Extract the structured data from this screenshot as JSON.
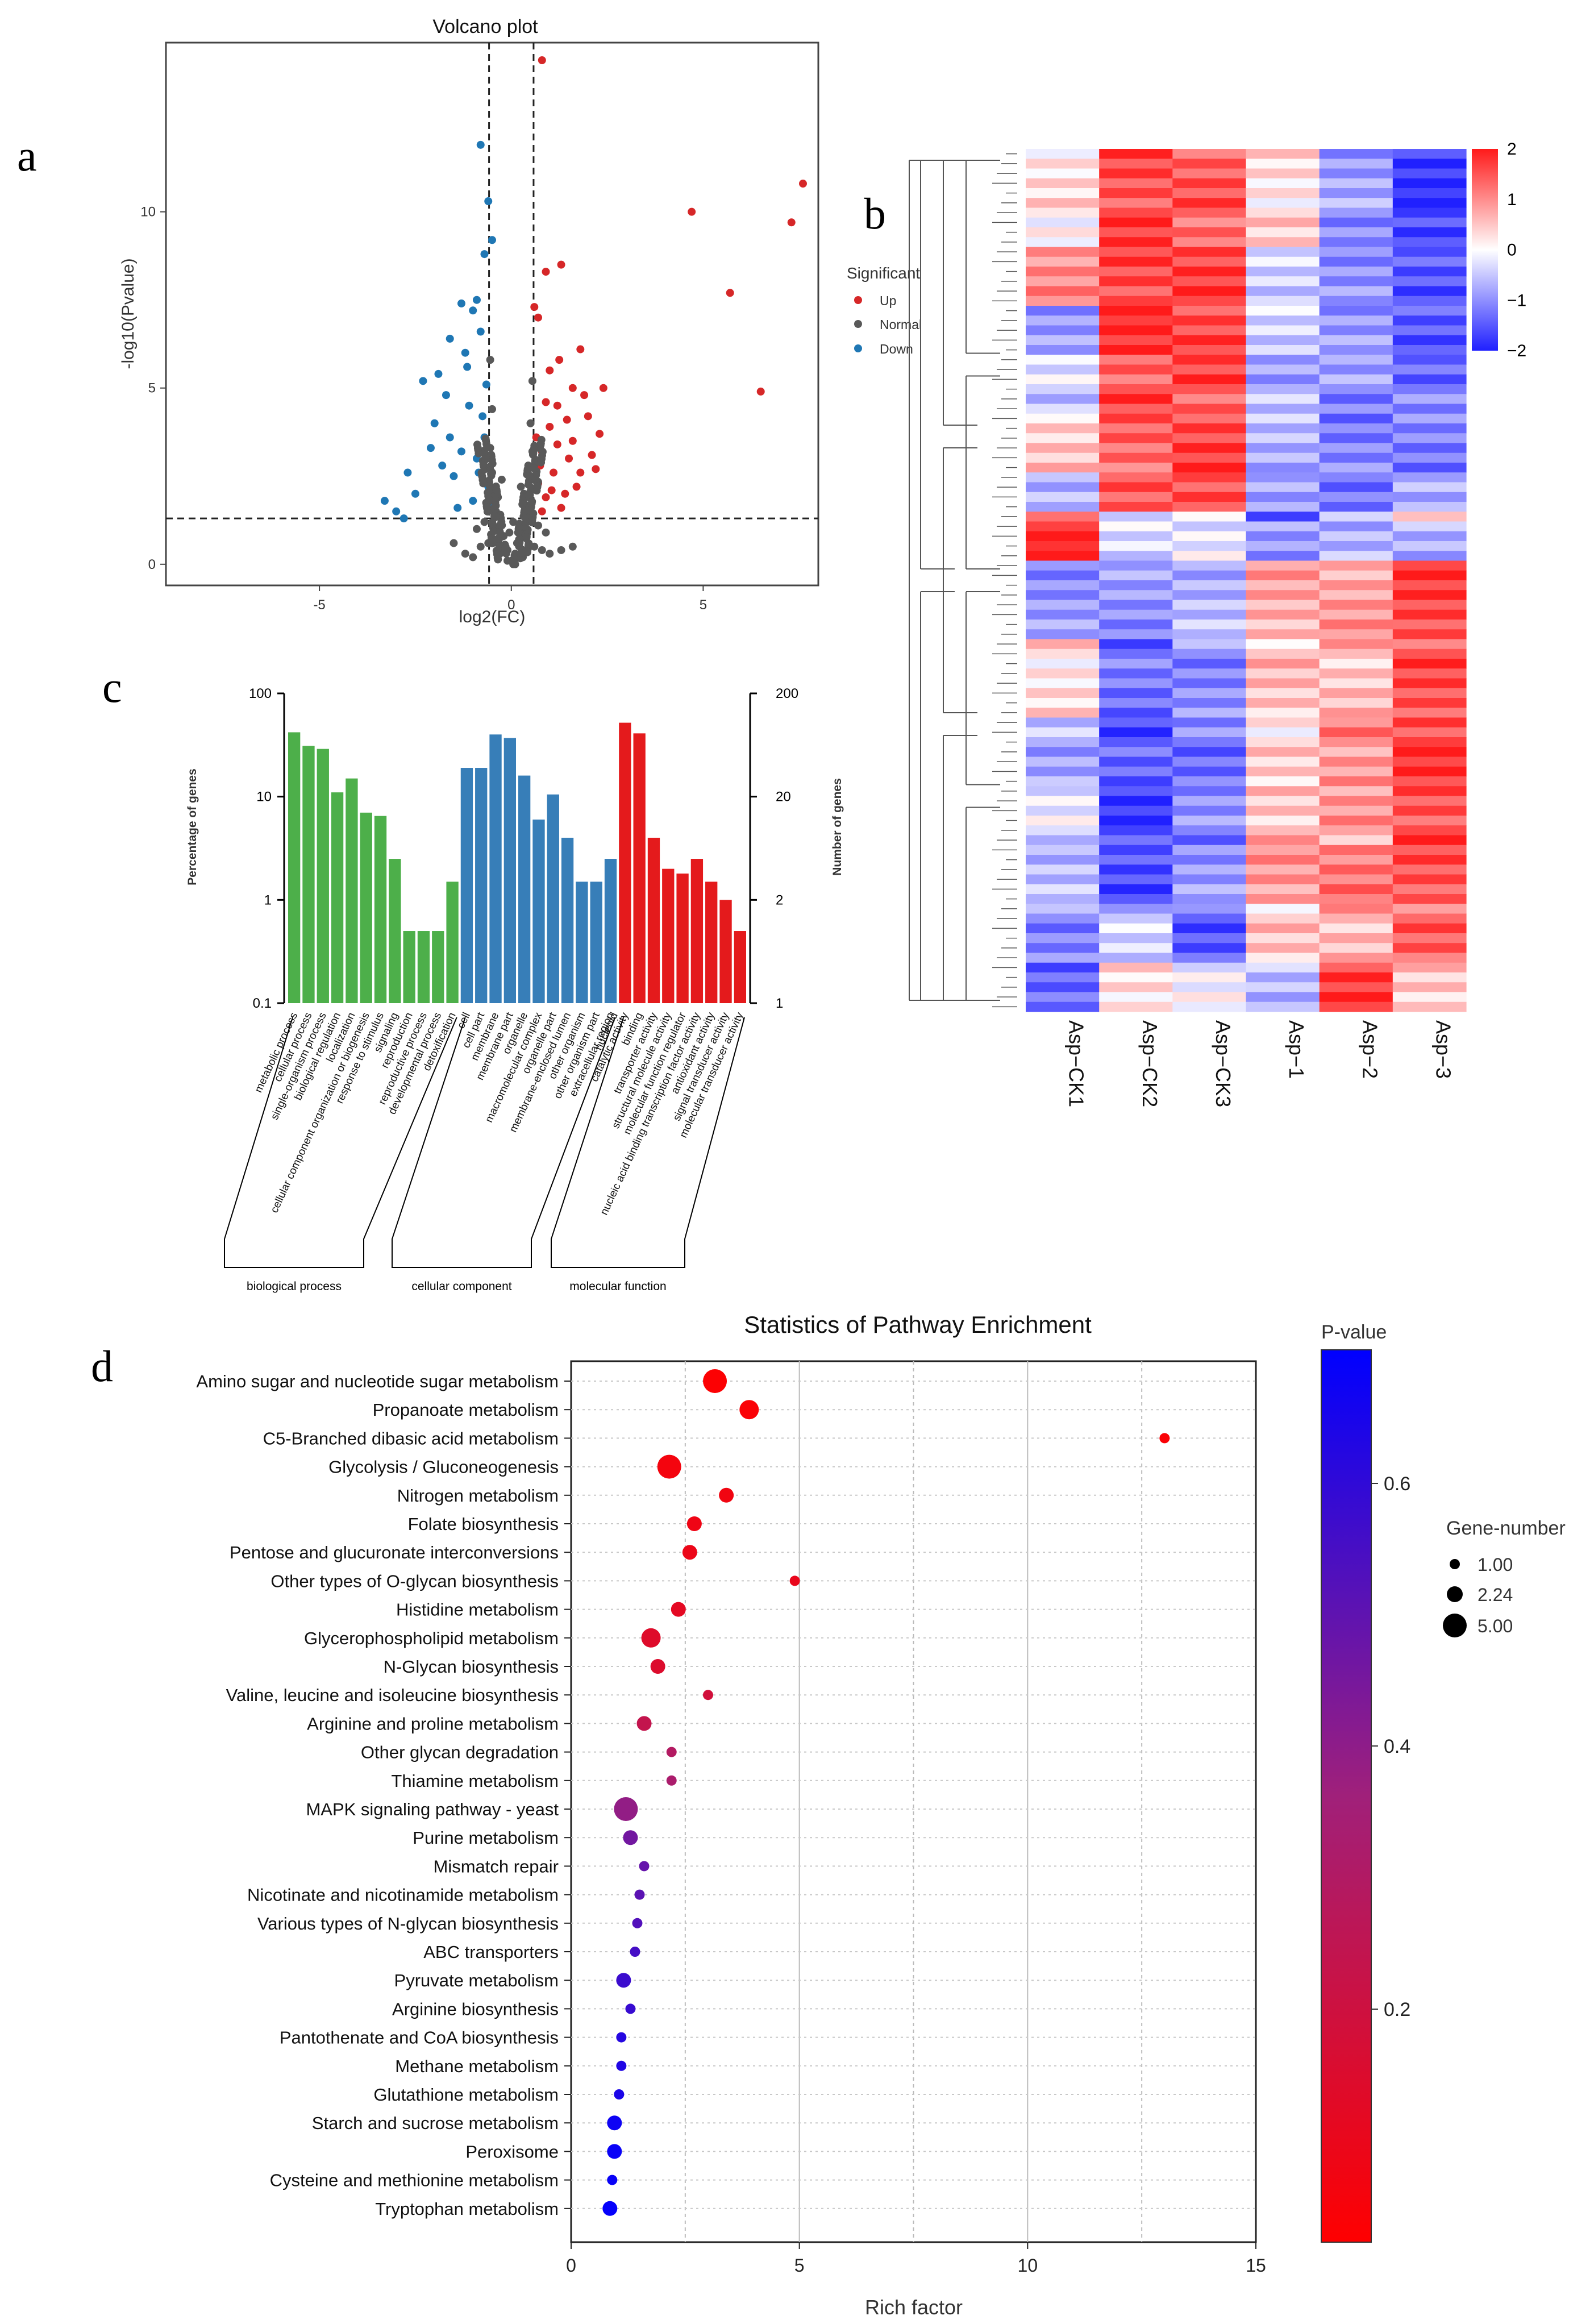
{
  "panel_labels": {
    "a": "a",
    "b": "b",
    "c": "c",
    "d": "d"
  },
  "colors": {
    "up": "#d62728",
    "normal": "#595959",
    "down": "#1f77b4",
    "bp": "#4daf4a",
    "cc": "#377eb8",
    "mf": "#e41a1c",
    "heat_low": "#2020ff",
    "heat_mid": "#ffffff",
    "heat_high": "#ff1a1a",
    "p_low": "#ff0000",
    "p_high": "#0000ff"
  },
  "chart_data": [
    {
      "id": "volcano",
      "type": "scatter",
      "title": "Volcano plot",
      "xlabel": "log2(FC)",
      "ylabel": "-log10(Pvalue)",
      "xlim": [
        -9,
        8
      ],
      "ylim": [
        -0.6,
        14.8
      ],
      "xticks": [
        -5,
        0,
        5
      ],
      "yticks": [
        0,
        5,
        10
      ],
      "thresholds": {
        "log2fc": [
          -0.58,
          0.58
        ],
        "neglog10p": 1.3
      },
      "legend_title": "Significant",
      "legend": [
        "Up",
        "Normal",
        "Down"
      ],
      "series": [
        {
          "name": "Up",
          "points": [
            [
              0.8,
              14.3
            ],
            [
              7.6,
              10.8
            ],
            [
              4.7,
              10.0
            ],
            [
              7.3,
              9.7
            ],
            [
              5.7,
              7.7
            ],
            [
              6.5,
              4.9
            ],
            [
              1.3,
              8.5
            ],
            [
              0.9,
              8.3
            ],
            [
              0.6,
              7.3
            ],
            [
              0.7,
              7.0
            ],
            [
              1.8,
              6.1
            ],
            [
              2.4,
              5.0
            ],
            [
              1.6,
              5.0
            ],
            [
              1.9,
              4.8
            ],
            [
              2.0,
              4.2
            ],
            [
              2.3,
              3.7
            ],
            [
              1.2,
              4.5
            ],
            [
              1.0,
              3.9
            ],
            [
              0.8,
              3.2
            ],
            [
              1.5,
              3.0
            ],
            [
              1.1,
              2.6
            ],
            [
              1.7,
              2.2
            ],
            [
              0.9,
              1.9
            ],
            [
              1.3,
              1.6
            ],
            [
              0.7,
              2.3
            ],
            [
              2.1,
              3.1
            ],
            [
              1.4,
              2.0
            ],
            [
              0.8,
              1.5
            ],
            [
              1.0,
              5.5
            ],
            [
              1.2,
              3.4
            ],
            [
              1.6,
              3.5
            ],
            [
              0.9,
              4.6
            ],
            [
              1.8,
              2.6
            ],
            [
              2.2,
              2.7
            ],
            [
              0.75,
              2.8
            ],
            [
              1.05,
              2.1
            ],
            [
              1.45,
              4.1
            ],
            [
              0.65,
              3.6
            ],
            [
              1.25,
              5.8
            ]
          ]
        },
        {
          "name": "Down",
          "points": [
            [
              -0.8,
              11.9
            ],
            [
              -0.6,
              10.3
            ],
            [
              -0.5,
              9.2
            ],
            [
              -0.7,
              8.8
            ],
            [
              -0.9,
              7.5
            ],
            [
              -1.0,
              7.2
            ],
            [
              -1.3,
              7.4
            ],
            [
              -0.8,
              6.6
            ],
            [
              -1.6,
              6.4
            ],
            [
              -1.2,
              6.0
            ],
            [
              -1.9,
              5.4
            ],
            [
              -2.3,
              5.2
            ],
            [
              -1.7,
              4.8
            ],
            [
              -1.1,
              4.5
            ],
            [
              -2.0,
              4.0
            ],
            [
              -2.7,
              2.6
            ],
            [
              -2.5,
              2.0
            ],
            [
              -3.3,
              1.8
            ],
            [
              -3.0,
              1.5
            ],
            [
              -2.8,
              1.3
            ],
            [
              -1.5,
              2.5
            ],
            [
              -0.9,
              3.0
            ],
            [
              -0.7,
              3.6
            ],
            [
              -1.3,
              3.2
            ],
            [
              -0.6,
              2.2
            ],
            [
              -1.0,
              1.8
            ],
            [
              -1.8,
              2.8
            ],
            [
              -0.75,
              4.2
            ],
            [
              -1.15,
              5.6
            ],
            [
              -0.65,
              5.1
            ],
            [
              -1.4,
              1.6
            ],
            [
              -0.85,
              2.6
            ],
            [
              -2.1,
              3.3
            ],
            [
              -1.6,
              3.6
            ],
            [
              -0.55,
              1.7
            ]
          ]
        },
        {
          "name": "Normal",
          "points": [
            [
              0.0,
              0.1
            ],
            [
              0.1,
              0.3
            ],
            [
              -0.1,
              0.4
            ],
            [
              0.2,
              0.7
            ],
            [
              -0.2,
              0.8
            ],
            [
              0.3,
              1.0
            ],
            [
              -0.3,
              1.1
            ],
            [
              0.4,
              1.4
            ],
            [
              -0.4,
              1.5
            ],
            [
              0.45,
              1.9
            ],
            [
              -0.45,
              2.0
            ],
            [
              0.5,
              2.5
            ],
            [
              -0.5,
              2.6
            ],
            [
              0.55,
              3.2
            ],
            [
              -0.55,
              3.3
            ],
            [
              0.3,
              0.2
            ],
            [
              -0.3,
              0.3
            ],
            [
              0.6,
              0.5
            ],
            [
              -0.6,
              0.6
            ],
            [
              0.8,
              0.4
            ],
            [
              -0.8,
              0.5
            ],
            [
              1.0,
              0.3
            ],
            [
              -1.0,
              0.2
            ],
            [
              1.3,
              0.4
            ],
            [
              -1.2,
              0.3
            ],
            [
              0.15,
              0.6
            ],
            [
              -0.15,
              0.5
            ],
            [
              0.05,
              1.2
            ],
            [
              -0.05,
              0.9
            ],
            [
              0.35,
              1.7
            ],
            [
              -0.35,
              1.9
            ],
            [
              0.5,
              4.0
            ],
            [
              -0.5,
              4.4
            ],
            [
              0.55,
              5.2
            ],
            [
              -0.55,
              5.8
            ],
            [
              0.9,
              0.9
            ],
            [
              -0.9,
              1.0
            ],
            [
              0.7,
              1.1
            ],
            [
              -0.7,
              1.2
            ],
            [
              1.6,
              0.5
            ],
            [
              -1.5,
              0.6
            ],
            [
              0.25,
              2.2
            ],
            [
              -0.25,
              2.4
            ],
            [
              0.1,
              0.0
            ],
            [
              -0.1,
              0.1
            ]
          ]
        }
      ]
    },
    {
      "id": "heatmap",
      "type": "heatmap",
      "columns": [
        "Asp−CK1",
        "Asp−CK2",
        "Asp−CK3",
        "Asp−1",
        "Asp−2",
        "Asp−3"
      ],
      "colorbar_range": [
        -2,
        2
      ],
      "colorbar_ticks": [
        "2",
        "1",
        "0",
        "−1",
        "−2"
      ],
      "blocks": [
        {
          "rows": 10,
          "values": [
            0.2,
            1.6,
            1.4,
            0.3,
            -0.9,
            -1.8
          ]
        },
        {
          "rows": 6,
          "values": [
            0.9,
            1.7,
            1.6,
            -0.3,
            -1.1,
            -1.4
          ]
        },
        {
          "rows": 5,
          "values": [
            -0.8,
            1.8,
            1.7,
            -0.5,
            -0.8,
            -1.6
          ]
        },
        {
          "rows": 6,
          "values": [
            -0.4,
            1.5,
            1.5,
            -0.7,
            -1.0,
            -1.2
          ]
        },
        {
          "rows": 6,
          "values": [
            0.4,
            1.4,
            1.6,
            -0.6,
            -1.2,
            -1.1
          ]
        },
        {
          "rows": 4,
          "values": [
            -0.5,
            1.3,
            1.7,
            -1.0,
            -1.1,
            -0.9
          ]
        },
        {
          "rows": 1,
          "values": [
            1.0,
            -0.3,
            -0.2,
            -1.5,
            -0.6,
            0.8
          ]
        },
        {
          "rows": 4,
          "values": [
            1.9,
            -0.2,
            -0.3,
            -0.8,
            -0.8,
            -0.6
          ]
        },
        {
          "rows": 8,
          "values": [
            -0.9,
            -1.0,
            -0.6,
            0.7,
            0.9,
            1.6
          ]
        },
        {
          "rows": 8,
          "values": [
            0.3,
            -1.3,
            -1.0,
            0.5,
            0.6,
            1.5
          ]
        },
        {
          "rows": 7,
          "values": [
            -0.7,
            -1.5,
            -1.2,
            0.3,
            1.0,
            1.7
          ]
        },
        {
          "rows": 6,
          "values": [
            -0.3,
            -1.7,
            -1.1,
            0.6,
            0.8,
            1.6
          ]
        },
        {
          "rows": 6,
          "values": [
            -0.6,
            -1.6,
            -0.9,
            0.9,
            1.2,
            1.5
          ]
        },
        {
          "rows": 6,
          "values": [
            -1.0,
            -0.5,
            -1.4,
            0.4,
            0.7,
            1.3
          ]
        },
        {
          "rows": 5,
          "values": [
            -1.5,
            0.4,
            -0.2,
            -0.5,
            1.6,
            0.6
          ]
        }
      ]
    },
    {
      "id": "go",
      "type": "bar",
      "ylabel_left": "Percentage of genes",
      "ylabel_right": "Number of genes",
      "yticks_left": [
        "100",
        "10",
        "1",
        "0.1"
      ],
      "yticks_right": [
        "200",
        "20",
        "2",
        "1"
      ],
      "categories": [
        "metabolic process",
        "cellular process",
        "single-organism process",
        "biological regulation",
        "localization",
        "cellular component organization or biogenesis",
        "response to stimulus",
        "signaling",
        "reproduction",
        "reproductive process",
        "developmental process",
        "detoxification",
        "cell",
        "cell part",
        "membrane",
        "membrane part",
        "organelle",
        "macromolecular complex",
        "organelle part",
        "membrane-enclosed lumen",
        "other organism",
        "other organism part",
        "extracellular region",
        "catalytic activity",
        "binding",
        "transporter activity",
        "structural molecule activity",
        "molecular function regulator",
        "nucleic acid binding transcription factor activity",
        "antioxidant activity",
        "signal transducer activity",
        "molecular transducer activity"
      ],
      "values": [
        42,
        31,
        29,
        11,
        15,
        7,
        6.5,
        2.5,
        0.5,
        0.5,
        0.5,
        1.5,
        19,
        19,
        40,
        37,
        16,
        6,
        10.5,
        4,
        1.5,
        1.5,
        2.5,
        52,
        41,
        4,
        2,
        1.8,
        2.5,
        1.5,
        1,
        0.5
      ],
      "groups": [
        {
          "name": "biological process",
          "count": 12
        },
        {
          "name": "cellular component",
          "count": 11
        },
        {
          "name": "molecular function",
          "count": 9
        }
      ],
      "extra_labels": [
        "nucleoid"
      ]
    },
    {
      "id": "kegg",
      "type": "scatter",
      "title": "Statistics of Pathway Enrichment",
      "xlabel": "Rich factor",
      "xlim": [
        0,
        15
      ],
      "xticks": [
        0,
        5,
        10,
        15
      ],
      "colorbar_title": "P-value",
      "colorbar_ticks": [
        "0.6",
        "0.4",
        "0.2"
      ],
      "colorbar_range": [
        0.0,
        0.7
      ],
      "size_legend_title": "Gene-number",
      "size_legend": [
        "1.00",
        "2.24",
        "5.00"
      ],
      "pathways": [
        {
          "name": "Amino sugar and nucleotide sugar metabolism",
          "rich": 3.15,
          "genes": 5,
          "p": 0.01
        },
        {
          "name": "Propanoate metabolism",
          "rich": 3.9,
          "genes": 3,
          "p": 0.02
        },
        {
          "name": "C5-Branched dibasic acid metabolism",
          "rich": 13.0,
          "genes": 1,
          "p": 0.02
        },
        {
          "name": "Glycolysis / Gluconeogenesis",
          "rich": 2.15,
          "genes": 5,
          "p": 0.04
        },
        {
          "name": "Nitrogen metabolism",
          "rich": 3.4,
          "genes": 2.24,
          "p": 0.05
        },
        {
          "name": "Folate biosynthesis",
          "rich": 2.7,
          "genes": 2.24,
          "p": 0.06
        },
        {
          "name": "Pentose and glucuronate interconversions",
          "rich": 2.6,
          "genes": 2.24,
          "p": 0.07
        },
        {
          "name": "Other types of O-glycan biosynthesis",
          "rich": 4.9,
          "genes": 1,
          "p": 0.08
        },
        {
          "name": "Histidine metabolism",
          "rich": 2.35,
          "genes": 2.24,
          "p": 0.1
        },
        {
          "name": "Glycerophospholipid metabolism",
          "rich": 1.75,
          "genes": 3,
          "p": 0.12
        },
        {
          "name": "N-Glycan biosynthesis",
          "rich": 1.9,
          "genes": 2.24,
          "p": 0.13
        },
        {
          "name": "Valine, leucine and isoleucine biosynthesis",
          "rich": 3.0,
          "genes": 1,
          "p": 0.17
        },
        {
          "name": "Arginine and proline metabolism",
          "rich": 1.6,
          "genes": 2.24,
          "p": 0.22
        },
        {
          "name": "Other glycan degradation",
          "rich": 2.2,
          "genes": 1,
          "p": 0.28
        },
        {
          "name": "Thiamine metabolism",
          "rich": 2.2,
          "genes": 1,
          "p": 0.31
        },
        {
          "name": "MAPK signaling pathway - yeast",
          "rich": 1.2,
          "genes": 5,
          "p": 0.38
        },
        {
          "name": "Purine metabolism",
          "rich": 1.3,
          "genes": 2.24,
          "p": 0.45
        },
        {
          "name": "Mismatch repair",
          "rich": 1.6,
          "genes": 1,
          "p": 0.48
        },
        {
          "name": "Nicotinate and nicotinamide metabolism",
          "rich": 1.5,
          "genes": 1,
          "p": 0.5
        },
        {
          "name": "Various types of N-glycan biosynthesis",
          "rich": 1.45,
          "genes": 1,
          "p": 0.52
        },
        {
          "name": "ABC transporters",
          "rich": 1.4,
          "genes": 1,
          "p": 0.55
        },
        {
          "name": "Pyruvate metabolism",
          "rich": 1.15,
          "genes": 2.24,
          "p": 0.57
        },
        {
          "name": "Arginine biosynthesis",
          "rich": 1.3,
          "genes": 1,
          "p": 0.58
        },
        {
          "name": "Pantothenate and CoA biosynthesis",
          "rich": 1.1,
          "genes": 1,
          "p": 0.62
        },
        {
          "name": "Methane metabolism",
          "rich": 1.1,
          "genes": 1,
          "p": 0.63
        },
        {
          "name": "Glutathione metabolism",
          "rich": 1.05,
          "genes": 1,
          "p": 0.64
        },
        {
          "name": "Starch and sucrose metabolism",
          "rich": 0.95,
          "genes": 2.24,
          "p": 0.67
        },
        {
          "name": "Peroxisome",
          "rich": 0.95,
          "genes": 2.24,
          "p": 0.68
        },
        {
          "name": "Cysteine and methionine metabolism",
          "rich": 0.9,
          "genes": 1,
          "p": 0.68
        },
        {
          "name": "Tryptophan metabolism",
          "rich": 0.85,
          "genes": 2.24,
          "p": 0.69
        }
      ]
    }
  ]
}
